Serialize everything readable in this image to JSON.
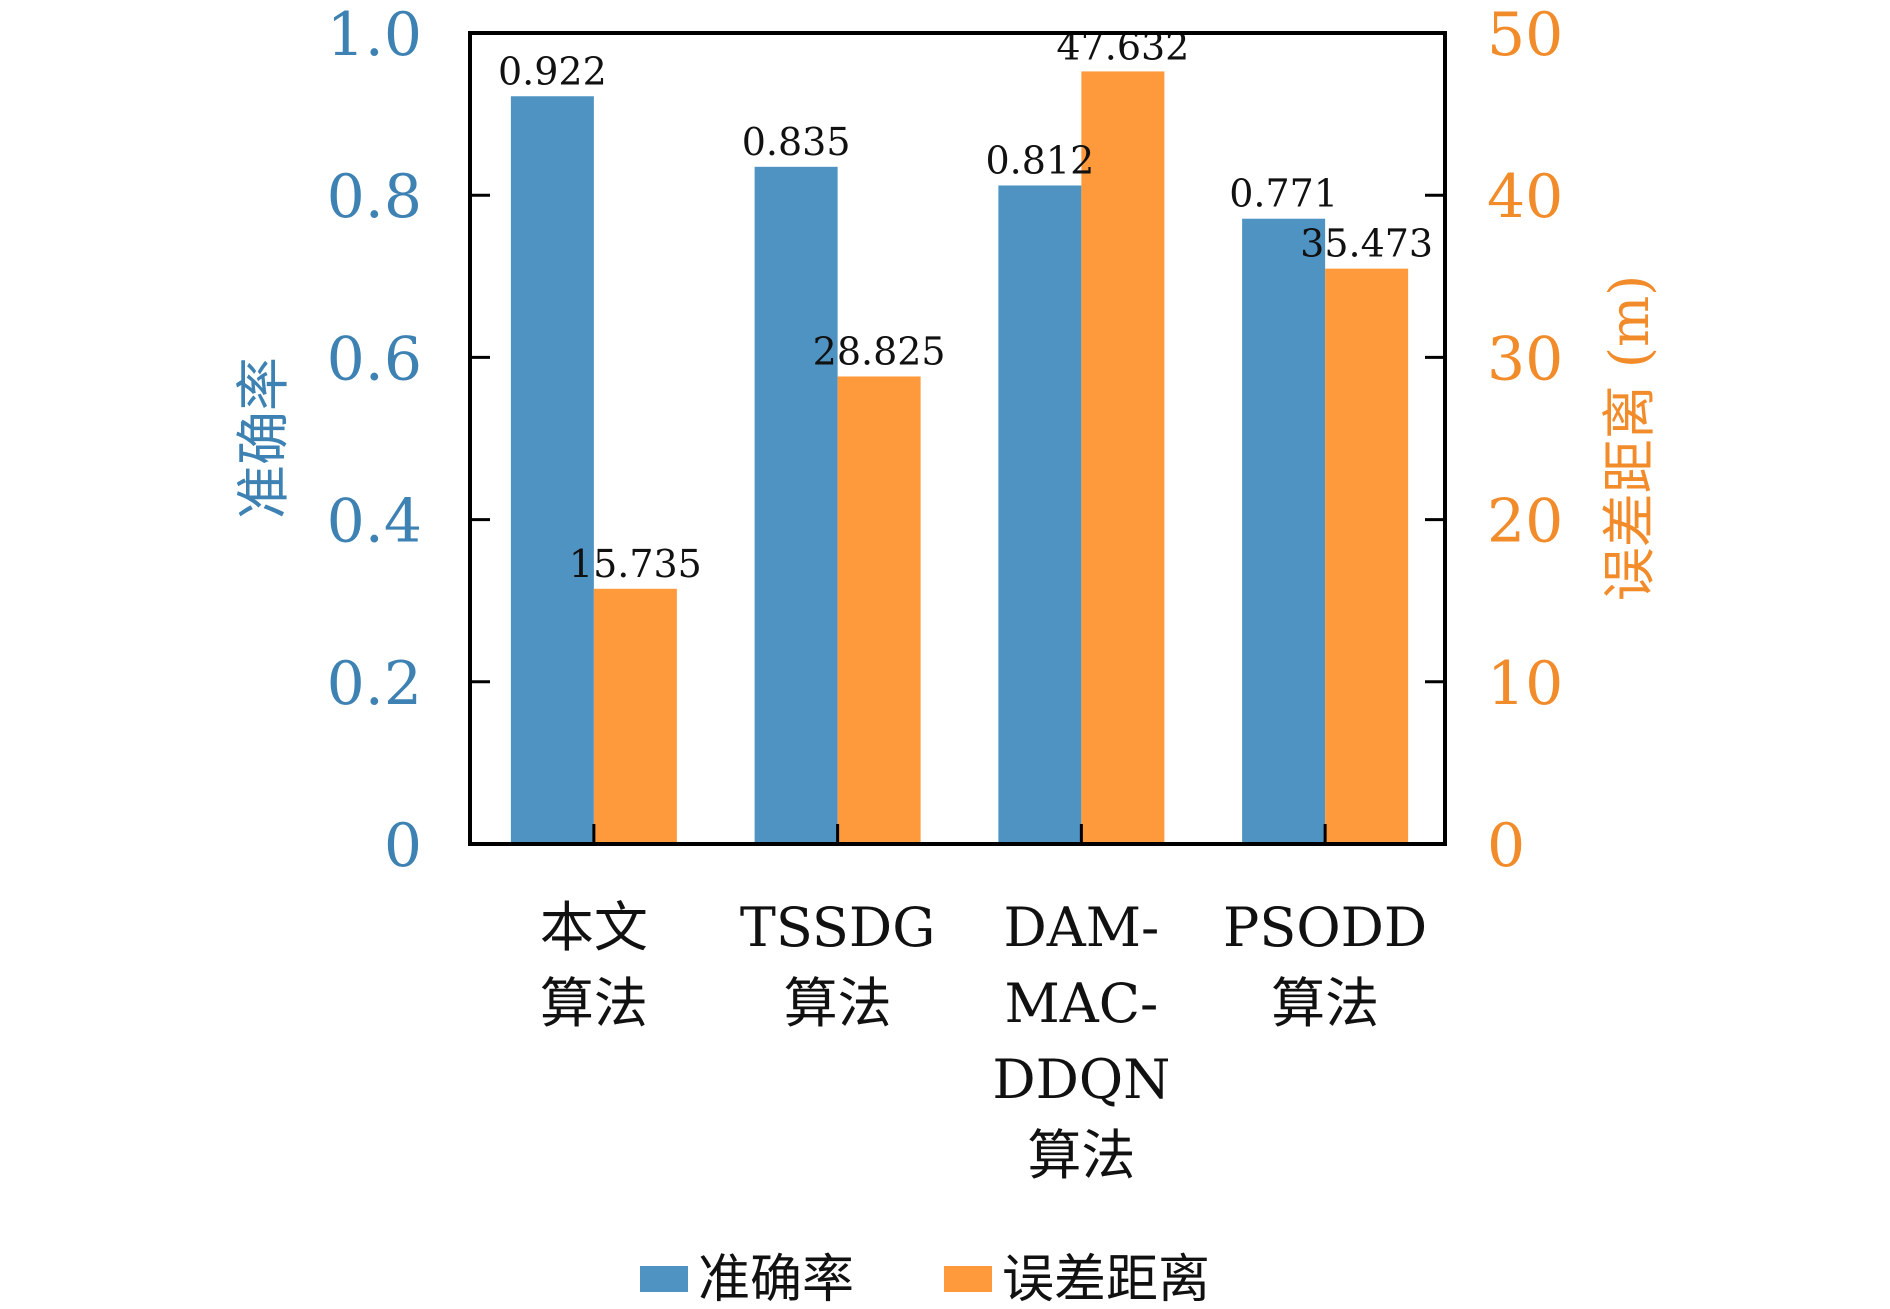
{
  "colors": {
    "accuracy": "#4f93c3",
    "error": "#ff9a3c",
    "axis": "#000000",
    "label_text": "#111111"
  },
  "chart_data": {
    "type": "bar",
    "categories": [
      [
        "本文",
        "算法"
      ],
      [
        "TSSDG",
        "算法"
      ],
      [
        "DAM-",
        "MAC-",
        "DDQN",
        "算法"
      ],
      [
        "PSODD",
        "算法"
      ]
    ],
    "series": [
      {
        "name": "准确率",
        "axis": "left",
        "values": [
          0.922,
          0.835,
          0.812,
          0.771
        ],
        "labels": [
          "0.922",
          "0.835",
          "0.812",
          "0.771"
        ]
      },
      {
        "name": "误差距离",
        "axis": "right",
        "values": [
          15.735,
          28.825,
          47.632,
          35.473
        ],
        "labels": [
          "15.735",
          "28.825",
          "47.632",
          "35.473"
        ]
      }
    ],
    "ylabel_left": "准确率",
    "ylabel_right": "误差距离 (m)",
    "ylim_left": [
      0,
      1.0
    ],
    "ylim_right": [
      0,
      50
    ],
    "yticks_left": [
      "0",
      "0.2",
      "0.4",
      "0.6",
      "0.8",
      "1.0"
    ],
    "yticks_right": [
      "0",
      "10",
      "20",
      "30",
      "40",
      "50"
    ],
    "grid": false,
    "legend_position": "bottom"
  }
}
